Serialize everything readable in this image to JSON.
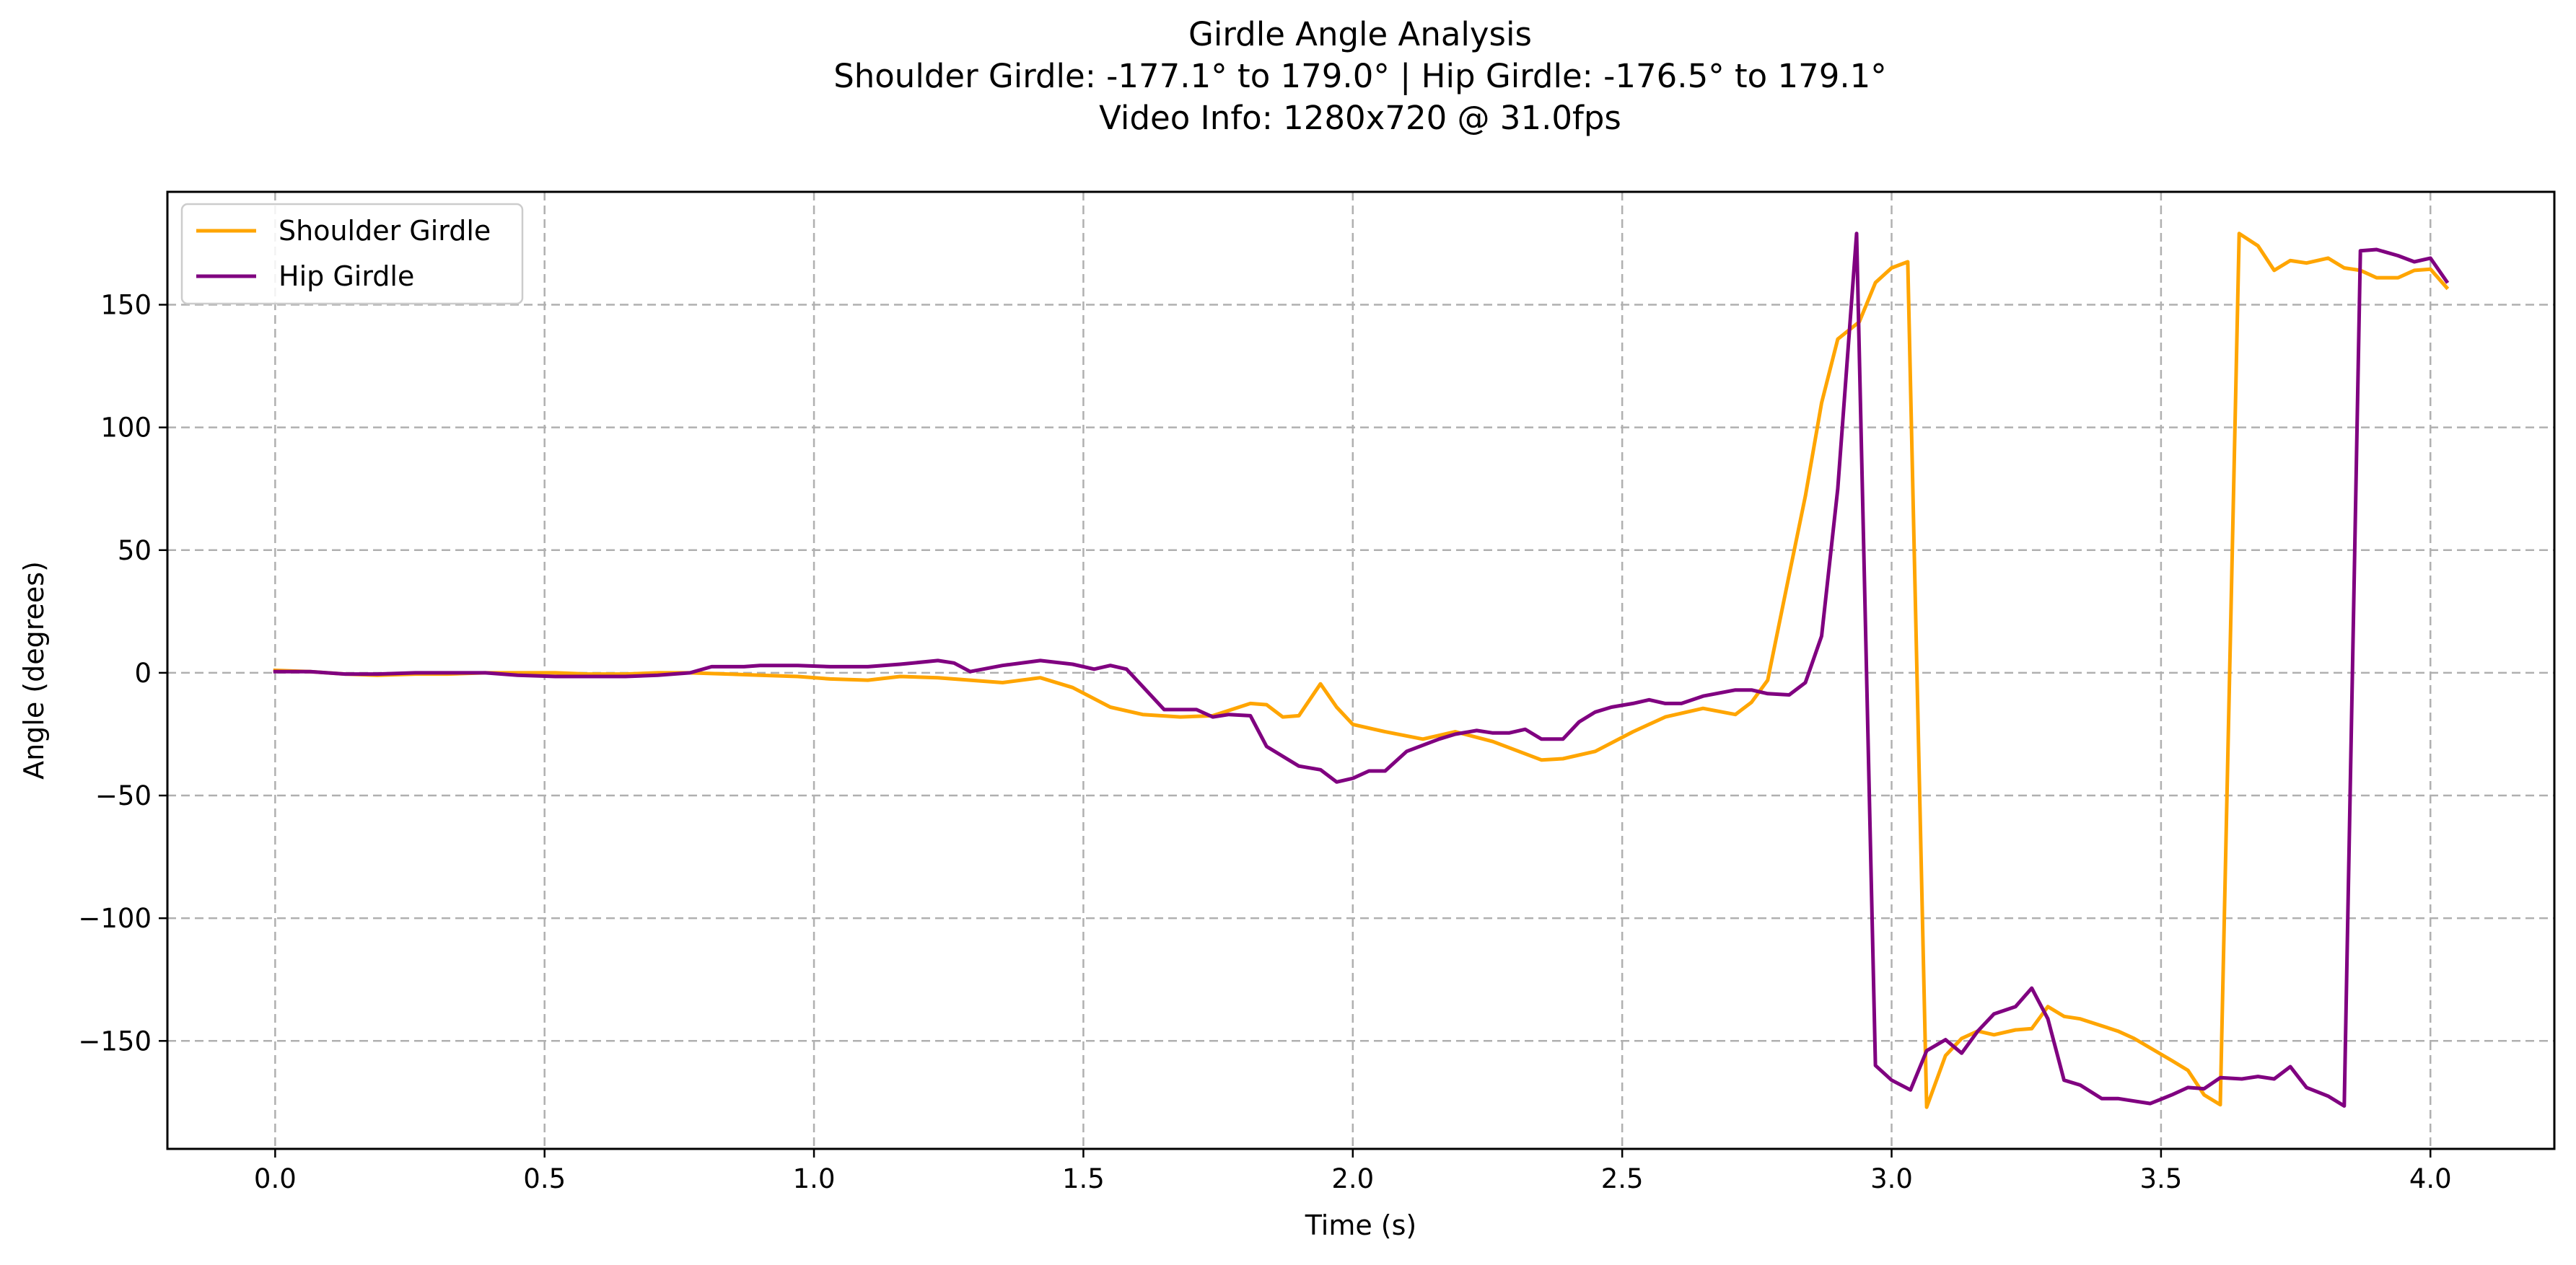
{
  "chart_data": {
    "type": "line",
    "title": "Girdle Angle Analysis",
    "subtitle_lines": [
      "Shoulder Girdle: -177.1° to 179.0° | Hip Girdle: -176.5° to 179.1°",
      "Video Info: 1280x720 @ 31.0fps"
    ],
    "xlabel": "Time (s)",
    "ylabel": "Angle (degrees)",
    "xlim": [
      -0.2,
      4.23
    ],
    "ylim": [
      -194,
      196
    ],
    "xticks": [
      0.0,
      0.5,
      1.0,
      1.5,
      2.0,
      2.5,
      3.0,
      3.5,
      4.0
    ],
    "xtick_labels": [
      "0.0",
      "0.5",
      "1.0",
      "1.5",
      "2.0",
      "2.5",
      "3.0",
      "3.5",
      "4.0"
    ],
    "yticks": [
      -150,
      -100,
      -50,
      0,
      50,
      100,
      150
    ],
    "ytick_labels": [
      "−150",
      "−100",
      "−50",
      "0",
      "50",
      "100",
      "150"
    ],
    "grid": true,
    "legend_position": "upper-left",
    "series": [
      {
        "name": "Shoulder Girdle",
        "color": "#FFA500",
        "points": [
          [
            0.0,
            1
          ],
          [
            0.065,
            0.5
          ],
          [
            0.13,
            -0.5
          ],
          [
            0.19,
            -1
          ],
          [
            0.26,
            -0.5
          ],
          [
            0.32,
            -0.5
          ],
          [
            0.39,
            0
          ],
          [
            0.45,
            0
          ],
          [
            0.52,
            0
          ],
          [
            0.58,
            -0.5
          ],
          [
            0.65,
            -0.5
          ],
          [
            0.71,
            0
          ],
          [
            0.77,
            0
          ],
          [
            0.84,
            -0.5
          ],
          [
            0.9,
            -1
          ],
          [
            0.97,
            -1.5
          ],
          [
            1.03,
            -2.5
          ],
          [
            1.1,
            -3
          ],
          [
            1.16,
            -1.5
          ],
          [
            1.23,
            -2
          ],
          [
            1.29,
            -3
          ],
          [
            1.35,
            -4
          ],
          [
            1.42,
            -2
          ],
          [
            1.48,
            -6
          ],
          [
            1.55,
            -14
          ],
          [
            1.61,
            -17
          ],
          [
            1.68,
            -18
          ],
          [
            1.74,
            -17.5
          ],
          [
            1.81,
            -12.5
          ],
          [
            1.84,
            -13
          ],
          [
            1.87,
            -18
          ],
          [
            1.9,
            -17.5
          ],
          [
            1.94,
            -4.5
          ],
          [
            1.97,
            -14
          ],
          [
            2.0,
            -21
          ],
          [
            2.06,
            -24
          ],
          [
            2.13,
            -27
          ],
          [
            2.19,
            -24
          ],
          [
            2.26,
            -28
          ],
          [
            2.32,
            -33
          ],
          [
            2.35,
            -35.5
          ],
          [
            2.39,
            -35
          ],
          [
            2.45,
            -32
          ],
          [
            2.52,
            -24
          ],
          [
            2.58,
            -18
          ],
          [
            2.65,
            -14.5
          ],
          [
            2.71,
            -17
          ],
          [
            2.74,
            -12
          ],
          [
            2.77,
            -3
          ],
          [
            2.81,
            40
          ],
          [
            2.84,
            72
          ],
          [
            2.87,
            110
          ],
          [
            2.9,
            136
          ],
          [
            2.94,
            143
          ],
          [
            2.97,
            159
          ],
          [
            3.0,
            165
          ],
          [
            3.03,
            167.5
          ],
          [
            3.065,
            -177
          ],
          [
            3.1,
            -156
          ],
          [
            3.13,
            -149
          ],
          [
            3.16,
            -146
          ],
          [
            3.19,
            -147.5
          ],
          [
            3.23,
            -145.5
          ],
          [
            3.26,
            -145
          ],
          [
            3.29,
            -136
          ],
          [
            3.32,
            -140
          ],
          [
            3.35,
            -141
          ],
          [
            3.42,
            -146
          ],
          [
            3.45,
            -149
          ],
          [
            3.52,
            -158
          ],
          [
            3.55,
            -162
          ],
          [
            3.58,
            -172
          ],
          [
            3.61,
            -176
          ],
          [
            3.645,
            179
          ],
          [
            3.68,
            174
          ],
          [
            3.71,
            164
          ],
          [
            3.74,
            168
          ],
          [
            3.77,
            167
          ],
          [
            3.81,
            169
          ],
          [
            3.84,
            165
          ],
          [
            3.87,
            164
          ],
          [
            3.9,
            161
          ],
          [
            3.94,
            161
          ],
          [
            3.97,
            164
          ],
          [
            4.0,
            164.5
          ],
          [
            4.03,
            157
          ]
        ]
      },
      {
        "name": "Hip Girdle",
        "color": "#800080",
        "points": [
          [
            0.0,
            0.5
          ],
          [
            0.065,
            0.5
          ],
          [
            0.13,
            -0.5
          ],
          [
            0.19,
            -0.5
          ],
          [
            0.26,
            0
          ],
          [
            0.32,
            0
          ],
          [
            0.39,
            0
          ],
          [
            0.45,
            -1
          ],
          [
            0.52,
            -1.5
          ],
          [
            0.58,
            -1.5
          ],
          [
            0.65,
            -1.5
          ],
          [
            0.71,
            -1
          ],
          [
            0.77,
            0
          ],
          [
            0.81,
            2.5
          ],
          [
            0.87,
            2.5
          ],
          [
            0.9,
            3
          ],
          [
            0.97,
            3
          ],
          [
            1.03,
            2.5
          ],
          [
            1.1,
            2.5
          ],
          [
            1.16,
            3.5
          ],
          [
            1.23,
            5
          ],
          [
            1.26,
            4
          ],
          [
            1.29,
            0.5
          ],
          [
            1.35,
            3
          ],
          [
            1.42,
            5
          ],
          [
            1.48,
            3.5
          ],
          [
            1.52,
            1.5
          ],
          [
            1.55,
            3
          ],
          [
            1.58,
            1.5
          ],
          [
            1.65,
            -15
          ],
          [
            1.71,
            -15
          ],
          [
            1.74,
            -18
          ],
          [
            1.77,
            -17
          ],
          [
            1.81,
            -17.5
          ],
          [
            1.84,
            -30
          ],
          [
            1.87,
            -34
          ],
          [
            1.9,
            -38
          ],
          [
            1.94,
            -39.5
          ],
          [
            1.97,
            -44.5
          ],
          [
            2.0,
            -43
          ],
          [
            2.03,
            -40
          ],
          [
            2.06,
            -40
          ],
          [
            2.1,
            -32
          ],
          [
            2.16,
            -27
          ],
          [
            2.19,
            -25
          ],
          [
            2.23,
            -23.5
          ],
          [
            2.26,
            -24.5
          ],
          [
            2.29,
            -24.5
          ],
          [
            2.32,
            -23
          ],
          [
            2.35,
            -27
          ],
          [
            2.39,
            -27
          ],
          [
            2.42,
            -20
          ],
          [
            2.45,
            -16
          ],
          [
            2.48,
            -14
          ],
          [
            2.52,
            -12.5
          ],
          [
            2.55,
            -11
          ],
          [
            2.58,
            -12.5
          ],
          [
            2.61,
            -12.5
          ],
          [
            2.65,
            -9.5
          ],
          [
            2.71,
            -7
          ],
          [
            2.74,
            -7
          ],
          [
            2.77,
            -8.5
          ],
          [
            2.81,
            -9
          ],
          [
            2.84,
            -4
          ],
          [
            2.87,
            15
          ],
          [
            2.9,
            75
          ],
          [
            2.935,
            179
          ],
          [
            2.97,
            -160
          ],
          [
            3.0,
            -166
          ],
          [
            3.035,
            -170
          ],
          [
            3.065,
            -154
          ],
          [
            3.1,
            -149.5
          ],
          [
            3.13,
            -155
          ],
          [
            3.16,
            -146
          ],
          [
            3.19,
            -139
          ],
          [
            3.23,
            -136
          ],
          [
            3.26,
            -128.5
          ],
          [
            3.29,
            -141
          ],
          [
            3.32,
            -166
          ],
          [
            3.35,
            -168
          ],
          [
            3.39,
            -173.5
          ],
          [
            3.42,
            -173.5
          ],
          [
            3.45,
            -174.5
          ],
          [
            3.48,
            -175.5
          ],
          [
            3.52,
            -172
          ],
          [
            3.55,
            -169
          ],
          [
            3.58,
            -169.5
          ],
          [
            3.61,
            -165
          ],
          [
            3.65,
            -165.5
          ],
          [
            3.68,
            -164.5
          ],
          [
            3.71,
            -165.5
          ],
          [
            3.74,
            -160.5
          ],
          [
            3.77,
            -169
          ],
          [
            3.81,
            -172.5
          ],
          [
            3.84,
            -176.5
          ],
          [
            3.87,
            172
          ],
          [
            3.9,
            172.5
          ],
          [
            3.94,
            170
          ],
          [
            3.97,
            167.5
          ],
          [
            4.0,
            169
          ],
          [
            4.03,
            159.5
          ]
        ]
      }
    ]
  }
}
